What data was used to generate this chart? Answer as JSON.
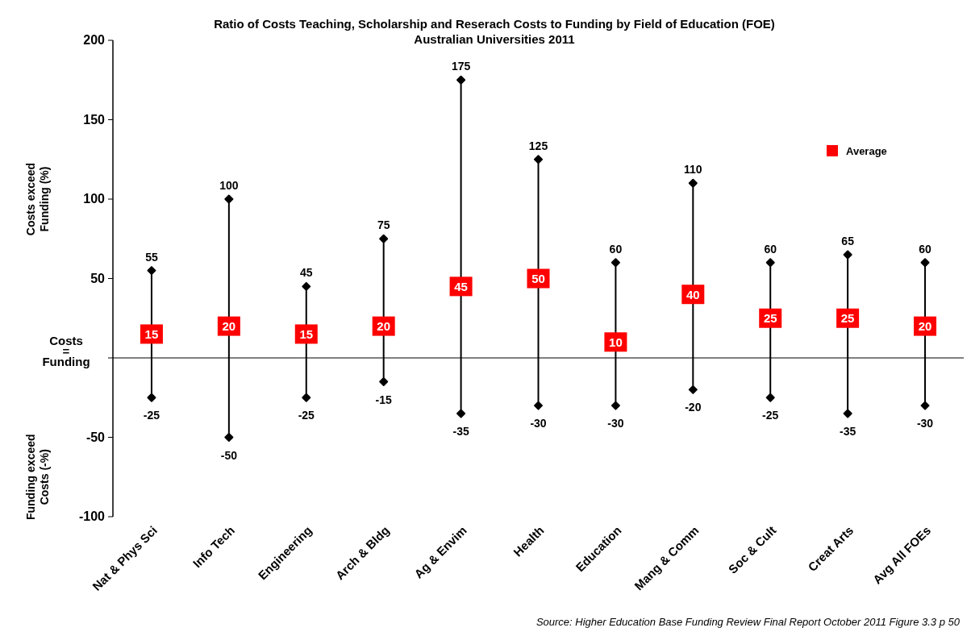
{
  "chart_data": {
    "type": "scatter",
    "title": "Ratio of Costs Teaching, Scholarship and Reserach Costs to Funding by Field of Education (FOE)",
    "subtitle": "Australian Universities 2011",
    "ylabel": "Costs exceed Funding (%)",
    "categories": [
      "Nat & Phys Sci",
      "Info Tech",
      "Engineering",
      "Arch & Bldg",
      "Ag & Envim",
      "Health",
      "Education",
      "Mang & Comm",
      "Soc & Cult",
      "Creat Arts",
      "Avg All FOEs"
    ],
    "series": [
      {
        "name": "Average",
        "color": "#ff0000",
        "marker": "square",
        "values": [
          15,
          20,
          15,
          20,
          45,
          50,
          10,
          40,
          25,
          25,
          20
        ],
        "errors": [
          [
            -25,
            55
          ],
          [
            -50,
            100
          ],
          [
            -25,
            45
          ],
          [
            -15,
            75
          ],
          [
            -35,
            175
          ],
          [
            -30,
            125
          ],
          [
            -30,
            60
          ],
          [
            -20,
            110
          ],
          [
            -25,
            60
          ],
          [
            -35,
            65
          ],
          [
            -30,
            60
          ]
        ]
      }
    ],
    "data_labels": true,
    "ylim": [
      -100,
      200
    ],
    "yticks": [
      -100,
      -50,
      {
        "value": 0,
        "label": null
      },
      50,
      100,
      150,
      200
    ],
    "grid": false,
    "legend": "top right",
    "ref_lines": [
      {
        "axis": "y",
        "value": 0,
        "color": "#000000"
      }
    ],
    "annotations": [
      "Funding exceed Costs (-%)",
      "Costs = Funding",
      "Source:  Higher Education Base Funding Review Final Report October 2011 Figure 3.3 p 50",
      {
        "text": "55",
        "x": "Nat & Phys Sci",
        "y": 55
      },
      {
        "text": "-25",
        "x": "Nat & Phys Sci",
        "y": -25
      },
      {
        "text": "100",
        "x": "Info Tech",
        "y": 100
      },
      {
        "text": "-50",
        "x": "Info Tech",
        "y": -50
      },
      {
        "text": "45",
        "x": "Engineering",
        "y": 45
      },
      {
        "text": "-25",
        "x": "Engineering",
        "y": -25
      },
      {
        "text": "75",
        "x": "Arch & Bldg",
        "y": 75
      },
      {
        "text": "-15",
        "x": "Arch & Bldg",
        "y": -15
      },
      {
        "text": "175",
        "x": "Ag & Envim",
        "y": 175
      },
      {
        "text": "-35",
        "x": "Ag & Envim",
        "y": -35
      },
      {
        "text": "125",
        "x": "Health",
        "y": 125
      },
      {
        "text": "-30",
        "x": "Health",
        "y": -30
      },
      {
        "text": "60",
        "x": "Education",
        "y": 60
      },
      {
        "text": "-30",
        "x": "Education",
        "y": -30
      },
      {
        "text": "110",
        "x": "Mang & Comm",
        "y": 110
      },
      {
        "text": "-20",
        "x": "Mang & Comm",
        "y": -20
      },
      {
        "text": "60",
        "x": "Soc & Cult",
        "y": 60
      },
      {
        "text": "-25",
        "x": "Soc & Cult",
        "y": -25
      },
      {
        "text": "65",
        "x": "Creat Arts",
        "y": 65
      },
      {
        "text": "-35",
        "x": "Creat Arts",
        "y": -35
      },
      {
        "text": "60",
        "x": "Avg All FOEs",
        "y": 60
      },
      {
        "text": "-30",
        "x": "Avg All FOEs",
        "y": -30
      }
    ]
  }
}
